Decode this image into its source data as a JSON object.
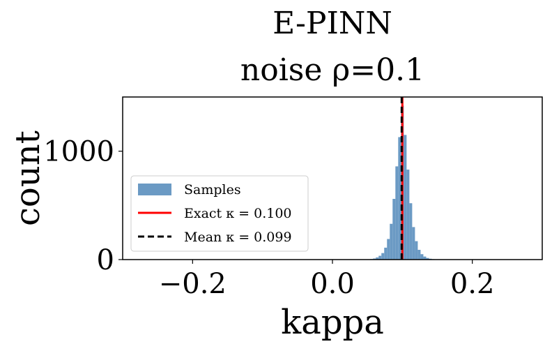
{
  "chart_data": {
    "type": "histogram",
    "title": "E-PINN",
    "subtitle": "noise ρ=0.1",
    "xlabel": "kappa",
    "ylabel": "count",
    "xlim": [
      -0.3,
      0.3
    ],
    "ylim": [
      0,
      1500
    ],
    "xticks": [
      -0.2,
      0.0,
      0.2
    ],
    "xtick_labels": [
      "−0.2",
      "0.0",
      "0.2"
    ],
    "yticks": [
      0,
      1000
    ],
    "ytick_labels": [
      "0",
      "1000"
    ],
    "bin_width": 0.004,
    "bins": [
      {
        "x": 0.052,
        "count": 2
      },
      {
        "x": 0.056,
        "count": 5
      },
      {
        "x": 0.06,
        "count": 10
      },
      {
        "x": 0.064,
        "count": 20
      },
      {
        "x": 0.068,
        "count": 35
      },
      {
        "x": 0.072,
        "count": 60
      },
      {
        "x": 0.076,
        "count": 110
      },
      {
        "x": 0.08,
        "count": 190
      },
      {
        "x": 0.084,
        "count": 330
      },
      {
        "x": 0.088,
        "count": 560
      },
      {
        "x": 0.092,
        "count": 860
      },
      {
        "x": 0.096,
        "count": 1130
      },
      {
        "x": 0.1,
        "count": 1420
      },
      {
        "x": 0.104,
        "count": 1150
      },
      {
        "x": 0.108,
        "count": 830
      },
      {
        "x": 0.112,
        "count": 520
      },
      {
        "x": 0.116,
        "count": 300
      },
      {
        "x": 0.12,
        "count": 170
      },
      {
        "x": 0.124,
        "count": 90
      },
      {
        "x": 0.128,
        "count": 50
      },
      {
        "x": 0.132,
        "count": 28
      },
      {
        "x": 0.136,
        "count": 15
      },
      {
        "x": 0.14,
        "count": 8
      },
      {
        "x": 0.144,
        "count": 4
      },
      {
        "x": 0.148,
        "count": 2
      }
    ],
    "lines": [
      {
        "name": "Exact",
        "x": 0.1,
        "color": "#ff0000",
        "style": "solid"
      },
      {
        "name": "Mean",
        "x": 0.099,
        "color": "#000000",
        "style": "dashed"
      }
    ],
    "legend": {
      "position": "lower-left",
      "entries": [
        {
          "label": "Samples",
          "kind": "patch",
          "color": "#6b9ac4"
        },
        {
          "label": "Exact κ = 0.100",
          "kind": "line",
          "color": "#ff0000"
        },
        {
          "label": "Mean κ = 0.099",
          "kind": "line",
          "color": "#000000"
        }
      ]
    },
    "bar_color": "#6b9ac4"
  }
}
